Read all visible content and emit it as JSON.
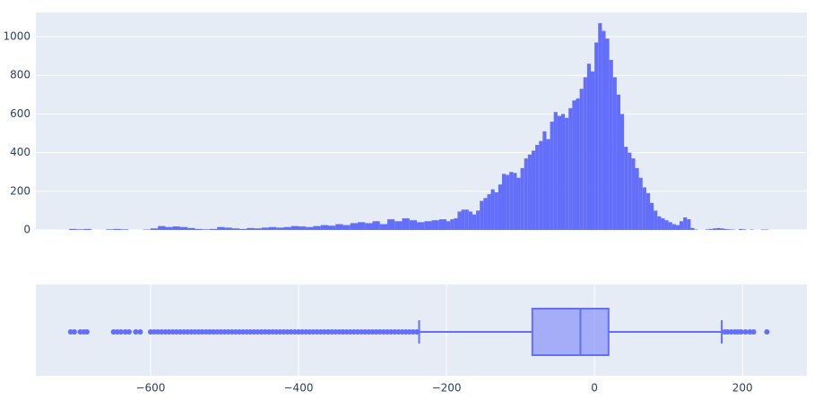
{
  "chart_data": [
    {
      "type": "histogram",
      "color": "#636efa",
      "bins": [
        -710,
        -700,
        -690,
        -680,
        -670,
        -660,
        -650,
        -640,
        -630,
        -620,
        -610,
        -600,
        -590,
        -580,
        -570,
        -560,
        -550,
        -540,
        -530,
        -520,
        -510,
        -500,
        -490,
        -480,
        -470,
        -460,
        -450,
        -440,
        -430,
        -420,
        -410,
        -400,
        -390,
        -380,
        -370,
        -360,
        -350,
        -340,
        -330,
        -320,
        -310,
        -300,
        -290,
        -280,
        -270,
        -260,
        -250,
        -240,
        -230,
        -220,
        -210,
        -200,
        -195,
        -190,
        -185,
        -180,
        -175,
        -170,
        -165,
        -160,
        -155,
        -150,
        -145,
        -140,
        -135,
        -130,
        -125,
        -120,
        -115,
        -110,
        -105,
        -100,
        -95,
        -90,
        -85,
        -80,
        -75,
        -70,
        -65,
        -60,
        -55,
        -50,
        -45,
        -40,
        -35,
        -30,
        -25,
        -20,
        -15,
        -10,
        -5,
        0,
        5,
        10,
        15,
        20,
        25,
        30,
        35,
        40,
        45,
        50,
        55,
        60,
        65,
        70,
        75,
        80,
        85,
        90,
        95,
        100,
        105,
        110,
        115,
        120,
        125,
        130,
        135,
        140,
        145,
        150,
        155,
        160,
        165,
        170,
        175,
        180,
        185,
        190,
        195,
        200,
        205,
        210,
        215,
        220,
        225,
        230,
        235
      ],
      "counts": [
        5,
        3,
        5,
        0,
        0,
        3,
        5,
        3,
        0,
        0,
        2,
        8,
        20,
        15,
        18,
        15,
        10,
        5,
        3,
        5,
        15,
        12,
        8,
        5,
        10,
        8,
        12,
        15,
        12,
        15,
        20,
        18,
        15,
        20,
        25,
        22,
        30,
        25,
        35,
        40,
        35,
        45,
        30,
        55,
        45,
        60,
        50,
        40,
        45,
        50,
        55,
        45,
        55,
        60,
        95,
        105,
        105,
        95,
        80,
        100,
        150,
        165,
        185,
        210,
        195,
        235,
        290,
        285,
        300,
        295,
        270,
        320,
        370,
        390,
        410,
        440,
        460,
        510,
        470,
        560,
        610,
        590,
        600,
        580,
        630,
        670,
        680,
        730,
        790,
        860,
        820,
        970,
        1070,
        1030,
        990,
        880,
        790,
        700,
        600,
        430,
        400,
        370,
        320,
        270,
        220,
        190,
        140,
        100,
        70,
        60,
        50,
        40,
        30,
        25,
        45,
        65,
        55,
        10,
        2,
        0,
        0,
        3,
        5,
        8,
        10,
        8,
        5,
        3,
        2,
        0,
        5,
        3,
        0,
        2,
        0,
        0,
        2,
        2
      ],
      "xlim": [
        -755,
        287
      ],
      "ylim": [
        0,
        1125
      ],
      "yticks": [
        0,
        200,
        400,
        600,
        800,
        1000
      ],
      "grid": true
    },
    {
      "type": "box",
      "color": "#636efa",
      "q1": -84,
      "median": -19,
      "q3": 19,
      "lowerfence": -237,
      "upperfence": 172,
      "outliers": [
        -708,
        -703,
        -695,
        -690,
        -686,
        -650,
        -645,
        -640,
        -634,
        -629,
        -620,
        -614,
        -600,
        -595,
        -590,
        -585,
        -580,
        -575,
        -570,
        -565,
        -560,
        -555,
        -550,
        -545,
        -540,
        -535,
        -530,
        -525,
        -520,
        -515,
        -510,
        -505,
        -500,
        -495,
        -490,
        -485,
        -480,
        -475,
        -470,
        -465,
        -460,
        -455,
        -450,
        -445,
        -440,
        -435,
        -430,
        -425,
        -420,
        -415,
        -410,
        -405,
        -400,
        -395,
        -390,
        -385,
        -380,
        -375,
        -370,
        -365,
        -360,
        -355,
        -350,
        -345,
        -340,
        -335,
        -330,
        -325,
        -320,
        -315,
        -310,
        -305,
        -300,
        -295,
        -290,
        -285,
        -280,
        -275,
        -270,
        -265,
        -260,
        -255,
        -250,
        -245,
        -240,
        176,
        180,
        185,
        190,
        194,
        198,
        204,
        210,
        215,
        233
      ],
      "xlim": [
        -755,
        287
      ],
      "xticks": [
        {
          "value": -600,
          "label": "−600"
        },
        {
          "value": -400,
          "label": "−400"
        },
        {
          "value": -200,
          "label": "−200"
        },
        0,
        200
      ],
      "grid": true
    }
  ]
}
